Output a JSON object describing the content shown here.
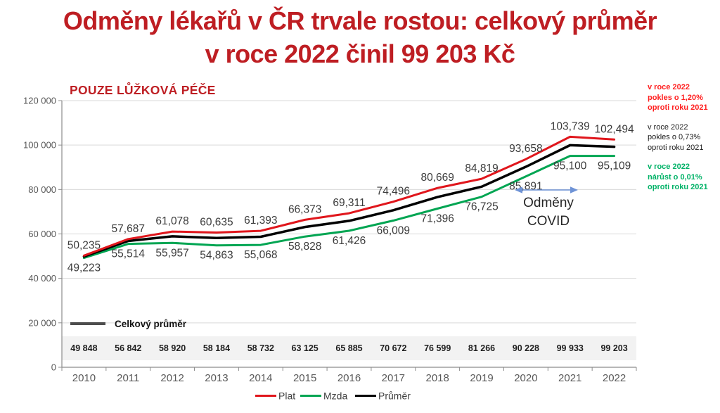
{
  "title": {
    "line1": "Odměny lékařů v ČR trvale rostou: celkový průměr",
    "line2": "v roce 2022 činil 99 203 Kč"
  },
  "subtitle": "POUZE LŮŽKOVÁ PÉČE",
  "chart_data": {
    "type": "line",
    "title": "POUZE LŮŽKOVÁ PÉČE",
    "categories": [
      "2010",
      "2011",
      "2012",
      "2013",
      "2014",
      "2015",
      "2016",
      "2017",
      "2018",
      "2019",
      "2020",
      "2021",
      "2022"
    ],
    "series": [
      {
        "name": "Plat",
        "color": "#E0161C",
        "label_position": "above",
        "values": [
          50235,
          57687,
          61078,
          60635,
          61393,
          66373,
          69311,
          74496,
          80669,
          84819,
          93658,
          103739,
          102494
        ]
      },
      {
        "name": "Mzda",
        "color": "#00A552",
        "label_position": "below",
        "values": [
          49223,
          55514,
          55957,
          54863,
          55068,
          58828,
          61426,
          66009,
          71396,
          76725,
          85891,
          95100,
          95109
        ]
      },
      {
        "name": "Průměr",
        "color": "#000000",
        "label_position": "none",
        "values": [
          49848,
          56842,
          58920,
          58184,
          58732,
          63125,
          65885,
          70672,
          76599,
          81266,
          90228,
          99933,
          99203
        ]
      }
    ],
    "ylim": [
      0,
      120000
    ],
    "ytick_step": 20000,
    "grid": true,
    "legend_position": "bottom"
  },
  "table": {
    "legend_label": "Celkový průměr"
  },
  "covid_annotation": {
    "line1": "Odměny",
    "line2": "COVID",
    "arrow_color": "#6E93D6"
  },
  "annotations": [
    {
      "color": "#FF1F1F",
      "bold": true,
      "lines": [
        "v roce 2022",
        "pokles o 1,20%",
        "oproti roku 2021"
      ]
    },
    {
      "color": "#1A1A1A",
      "bold": false,
      "lines": [
        "v roce 2022",
        "pokles o 0,73%",
        "oproti roku 2021"
      ]
    },
    {
      "color": "#00B267",
      "bold": true,
      "lines": [
        "v roce 2022",
        "nárůst o 0,01%",
        "oproti roku 2021"
      ]
    }
  ]
}
